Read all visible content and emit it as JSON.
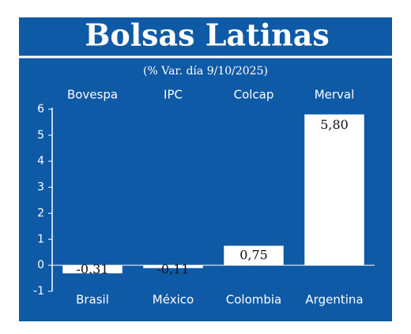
{
  "chart_data": {
    "type": "bar",
    "title": "Bolsas Latinas",
    "subtitle": "(% Var. día 9/10/2025)",
    "index_names": [
      "Bovespa",
      "IPC",
      "Colcap",
      "Merval"
    ],
    "categories": [
      "Brasil",
      "México",
      "Colombia",
      "Argentina"
    ],
    "values": [
      -0.31,
      -0.11,
      0.75,
      5.8
    ],
    "value_labels": [
      "-0.31",
      "-0,11",
      "0,75",
      "5,80"
    ],
    "color": "#ffffff",
    "ylim": [
      -1,
      6
    ],
    "yticks": [
      -1,
      0,
      1,
      2,
      3,
      4,
      5,
      6
    ]
  }
}
